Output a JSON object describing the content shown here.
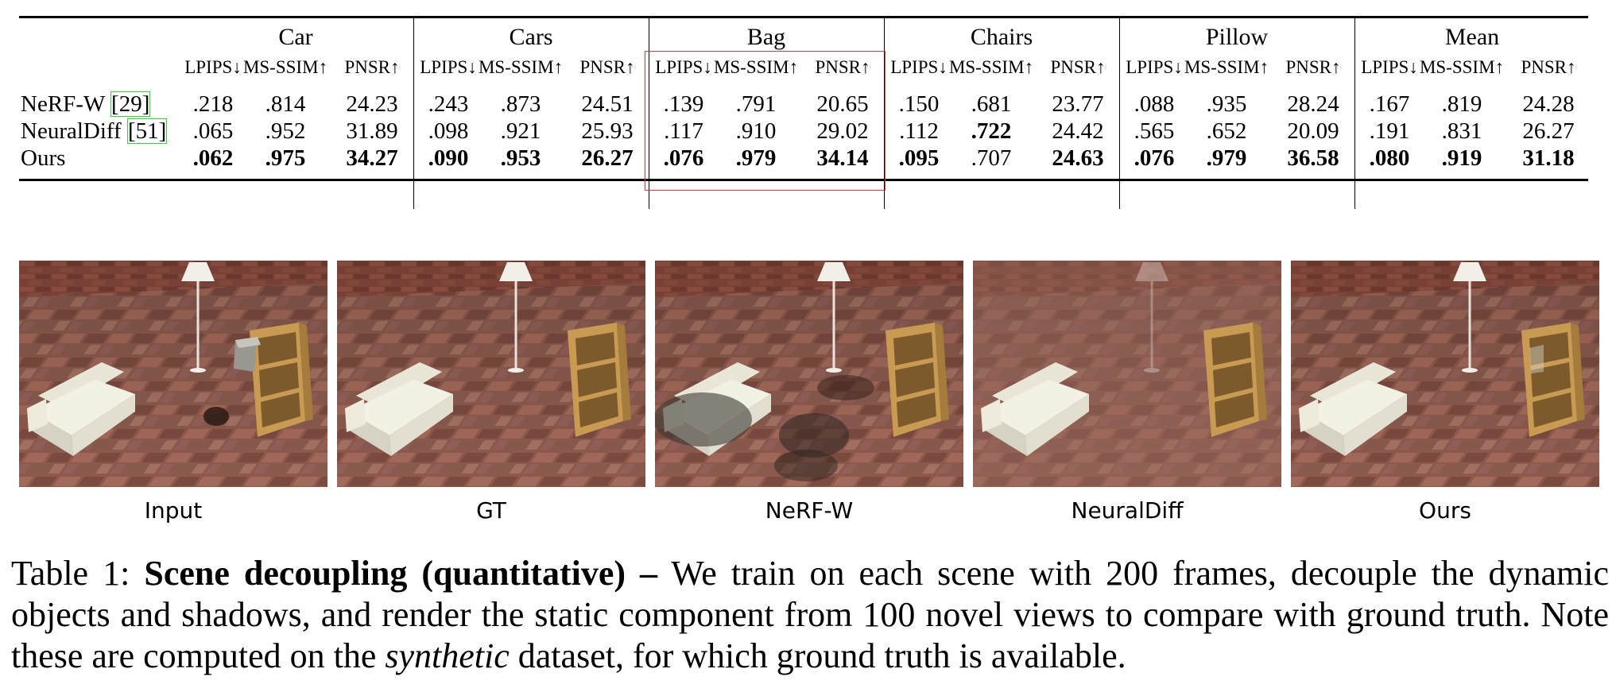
{
  "table": {
    "groups": [
      "Car",
      "Cars",
      "Bag",
      "Chairs",
      "Pillow",
      "Mean"
    ],
    "metrics": [
      "LPIPS↓",
      "MS-SSIM↑",
      "PNSR↑"
    ],
    "rows": [
      {
        "method": "NeRF-W",
        "ref": "[29]",
        "values": [
          ".218",
          ".814",
          "24.23",
          ".243",
          ".873",
          "24.51",
          ".139",
          ".791",
          "20.65",
          ".150",
          ".681",
          "23.77",
          ".088",
          ".935",
          "28.24",
          ".167",
          ".819",
          "24.28"
        ],
        "bold": [
          false,
          false,
          false,
          false,
          false,
          false,
          false,
          false,
          false,
          false,
          false,
          false,
          false,
          false,
          false,
          false,
          false,
          false
        ]
      },
      {
        "method": "NeuralDiff",
        "ref": "[51]",
        "values": [
          ".065",
          ".952",
          "31.89",
          ".098",
          ".921",
          "25.93",
          ".117",
          ".910",
          "29.02",
          ".112",
          ".722",
          "24.42",
          ".565",
          ".652",
          "20.09",
          ".191",
          ".831",
          "26.27"
        ],
        "bold": [
          false,
          false,
          false,
          false,
          false,
          false,
          false,
          false,
          false,
          false,
          true,
          false,
          false,
          false,
          false,
          false,
          false,
          false
        ]
      },
      {
        "method": "Ours",
        "ref": "",
        "values": [
          ".062",
          ".975",
          "34.27",
          ".090",
          ".953",
          "26.27",
          ".076",
          ".979",
          "34.14",
          ".095",
          ".707",
          "24.63",
          ".076",
          ".979",
          "36.58",
          ".080",
          ".919",
          "31.18"
        ],
        "bold": [
          true,
          true,
          true,
          true,
          true,
          true,
          true,
          true,
          true,
          true,
          false,
          true,
          true,
          true,
          true,
          true,
          true,
          true
        ]
      }
    ],
    "highlighted_group": "Bag",
    "highlight_color": "#e0363a",
    "ref_link_color": "#3ccf3c"
  },
  "panels": [
    {
      "label": "Input"
    },
    {
      "label": "GT"
    },
    {
      "label": "NeRF-W"
    },
    {
      "label": "NeuralDiff"
    },
    {
      "label": "Ours"
    }
  ],
  "caption": {
    "prefix": "Table 1: ",
    "bold_title": "Scene decoupling (quantitative) –",
    "text_before_italic": " We train on each scene with 200 frames, decouple the dynamic objects and shadows, and render the static component from 100 novel views to compare with ground truth. Note these are computed on the ",
    "italic_word": "synthetic",
    "text_after_italic": " dataset, for which ground truth is available."
  }
}
